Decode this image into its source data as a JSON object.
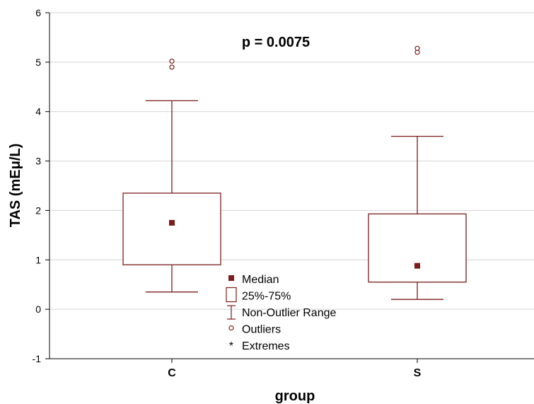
{
  "chart_data": {
    "type": "box",
    "xlabel": "group",
    "ylabel": "TAS  (mEμ/L)",
    "ylim": [
      -1,
      6
    ],
    "yticks": [
      -1,
      0,
      1,
      2,
      3,
      4,
      5,
      6
    ],
    "grid": true,
    "annotation": "p = 0.0075",
    "categories": [
      "C",
      "S"
    ],
    "groups": [
      {
        "name": "C",
        "median": 1.75,
        "q1": 0.9,
        "q3": 2.35,
        "whisker_low": 0.35,
        "whisker_high": 4.22,
        "outliers": [
          4.9,
          5.02
        ],
        "extremes": []
      },
      {
        "name": "S",
        "median": 0.88,
        "q1": 0.55,
        "q3": 1.93,
        "whisker_low": 0.2,
        "whisker_high": 3.5,
        "outliers": [
          5.2,
          5.28
        ],
        "extremes": []
      }
    ],
    "legend": {
      "position": "bottom-center",
      "entries": [
        "Median",
        "25%-75%",
        "Non-Outlier Range",
        "Outliers",
        "Extremes"
      ]
    },
    "color": "#7b1c1c"
  }
}
